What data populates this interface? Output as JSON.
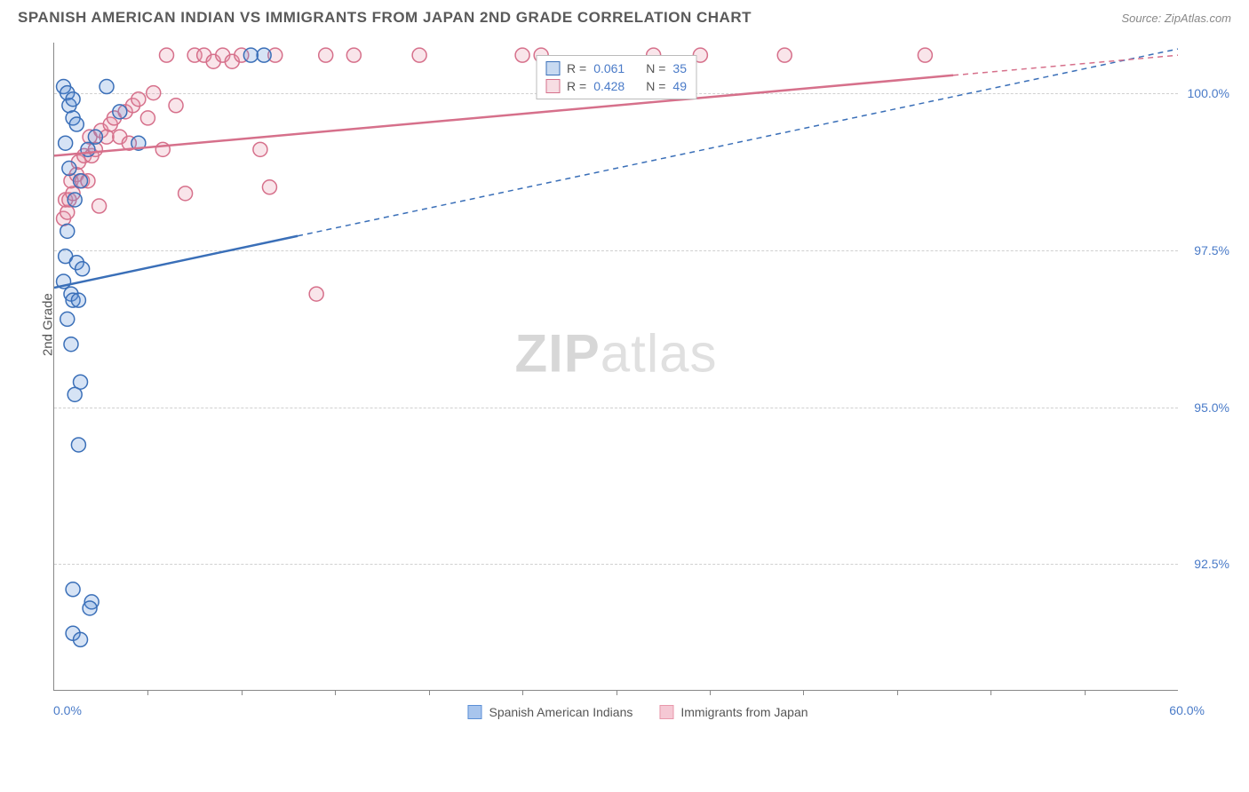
{
  "header": {
    "title": "SPANISH AMERICAN INDIAN VS IMMIGRANTS FROM JAPAN 2ND GRADE CORRELATION CHART",
    "source": "Source: ZipAtlas.com"
  },
  "chart": {
    "type": "scatter",
    "y_axis_label": "2nd Grade",
    "xlim": [
      0,
      60
    ],
    "ylim": [
      90.5,
      100.8
    ],
    "x_min_label": "0.0%",
    "x_max_label": "60.0%",
    "y_ticks": [
      92.5,
      95.0,
      97.5,
      100.0
    ],
    "y_tick_labels": [
      "92.5%",
      "95.0%",
      "97.5%",
      "100.0%"
    ],
    "x_tick_positions": [
      5,
      10,
      15,
      20,
      25,
      30,
      35,
      40,
      45,
      50,
      55
    ],
    "background_color": "#ffffff",
    "grid_color": "#d0d0d0",
    "axis_color": "#888888",
    "tick_label_color": "#4a7bc8",
    "marker_radius": 8,
    "marker_stroke_width": 1.5,
    "marker_fill_opacity": 0.25,
    "trend_line_width": 2.5,
    "trend_dash": "6,5",
    "watermark": "ZIPatlas",
    "series": [
      {
        "name": "Spanish American Indians",
        "color": "#5b8fd6",
        "stroke": "#3a6fb8",
        "r_label": "R =",
        "r_value": "0.061",
        "n_label": "N =",
        "n_value": "35",
        "trend": {
          "x1": 0,
          "y1": 96.9,
          "x2": 60,
          "y2": 100.7,
          "solid_until_x": 13
        },
        "points": [
          [
            0.5,
            100.1
          ],
          [
            0.7,
            100.0
          ],
          [
            0.8,
            99.8
          ],
          [
            1.0,
            99.9
          ],
          [
            1.0,
            99.6
          ],
          [
            1.2,
            99.5
          ],
          [
            0.6,
            99.2
          ],
          [
            0.8,
            98.8
          ],
          [
            1.4,
            98.6
          ],
          [
            1.8,
            99.1
          ],
          [
            1.1,
            98.3
          ],
          [
            0.7,
            97.8
          ],
          [
            0.6,
            97.4
          ],
          [
            1.2,
            97.3
          ],
          [
            1.5,
            97.2
          ],
          [
            0.5,
            97.0
          ],
          [
            0.9,
            96.8
          ],
          [
            1.0,
            96.7
          ],
          [
            1.3,
            96.7
          ],
          [
            0.7,
            96.4
          ],
          [
            0.9,
            96.0
          ],
          [
            1.4,
            95.4
          ],
          [
            1.1,
            95.2
          ],
          [
            1.3,
            94.4
          ],
          [
            1.0,
            92.1
          ],
          [
            2.0,
            91.9
          ],
          [
            1.9,
            91.8
          ],
          [
            1.0,
            91.4
          ],
          [
            1.4,
            91.3
          ],
          [
            2.2,
            99.3
          ],
          [
            2.8,
            100.1
          ],
          [
            3.5,
            99.7
          ],
          [
            4.5,
            99.2
          ],
          [
            10.5,
            100.6
          ],
          [
            11.2,
            100.6
          ]
        ]
      },
      {
        "name": "Immigrants from Japan",
        "color": "#e898ab",
        "stroke": "#d6708b",
        "r_label": "R =",
        "r_value": "0.428",
        "n_label": "N =",
        "n_value": "49",
        "trend": {
          "x1": 0,
          "y1": 99.0,
          "x2": 60,
          "y2": 100.6,
          "solid_until_x": 48
        },
        "points": [
          [
            0.5,
            98.0
          ],
          [
            0.7,
            98.1
          ],
          [
            0.6,
            98.3
          ],
          [
            0.8,
            98.3
          ],
          [
            1.0,
            98.4
          ],
          [
            0.9,
            98.6
          ],
          [
            1.2,
            98.7
          ],
          [
            1.5,
            98.6
          ],
          [
            1.8,
            98.6
          ],
          [
            1.3,
            98.9
          ],
          [
            1.6,
            99.0
          ],
          [
            2.0,
            99.0
          ],
          [
            2.2,
            99.1
          ],
          [
            1.9,
            99.3
          ],
          [
            2.5,
            99.4
          ],
          [
            2.8,
            99.3
          ],
          [
            3.0,
            99.5
          ],
          [
            3.2,
            99.6
          ],
          [
            3.5,
            99.3
          ],
          [
            3.8,
            99.7
          ],
          [
            4.0,
            99.2
          ],
          [
            4.2,
            99.8
          ],
          [
            4.5,
            99.9
          ],
          [
            5.0,
            99.6
          ],
          [
            5.3,
            100.0
          ],
          [
            5.8,
            99.1
          ],
          [
            6.0,
            100.6
          ],
          [
            6.5,
            99.8
          ],
          [
            7.0,
            98.4
          ],
          [
            7.5,
            100.6
          ],
          [
            8.0,
            100.6
          ],
          [
            8.5,
            100.5
          ],
          [
            9.0,
            100.6
          ],
          [
            9.5,
            100.5
          ],
          [
            10.0,
            100.6
          ],
          [
            11.0,
            99.1
          ],
          [
            11.5,
            98.5
          ],
          [
            11.8,
            100.6
          ],
          [
            14.5,
            100.6
          ],
          [
            14.0,
            96.8
          ],
          [
            16.0,
            100.6
          ],
          [
            19.5,
            100.6
          ],
          [
            25.0,
            100.6
          ],
          [
            26.0,
            100.6
          ],
          [
            32.0,
            100.6
          ],
          [
            34.5,
            100.6
          ],
          [
            39.0,
            100.6
          ],
          [
            46.5,
            100.6
          ],
          [
            2.4,
            98.2
          ]
        ]
      }
    ],
    "legend_bottom": [
      {
        "swatch": "#a8c5ed",
        "border": "#5b8fd6",
        "label": "Spanish American Indians"
      },
      {
        "swatch": "#f5c8d4",
        "border": "#e898ab",
        "label": "Immigrants from Japan"
      }
    ]
  }
}
